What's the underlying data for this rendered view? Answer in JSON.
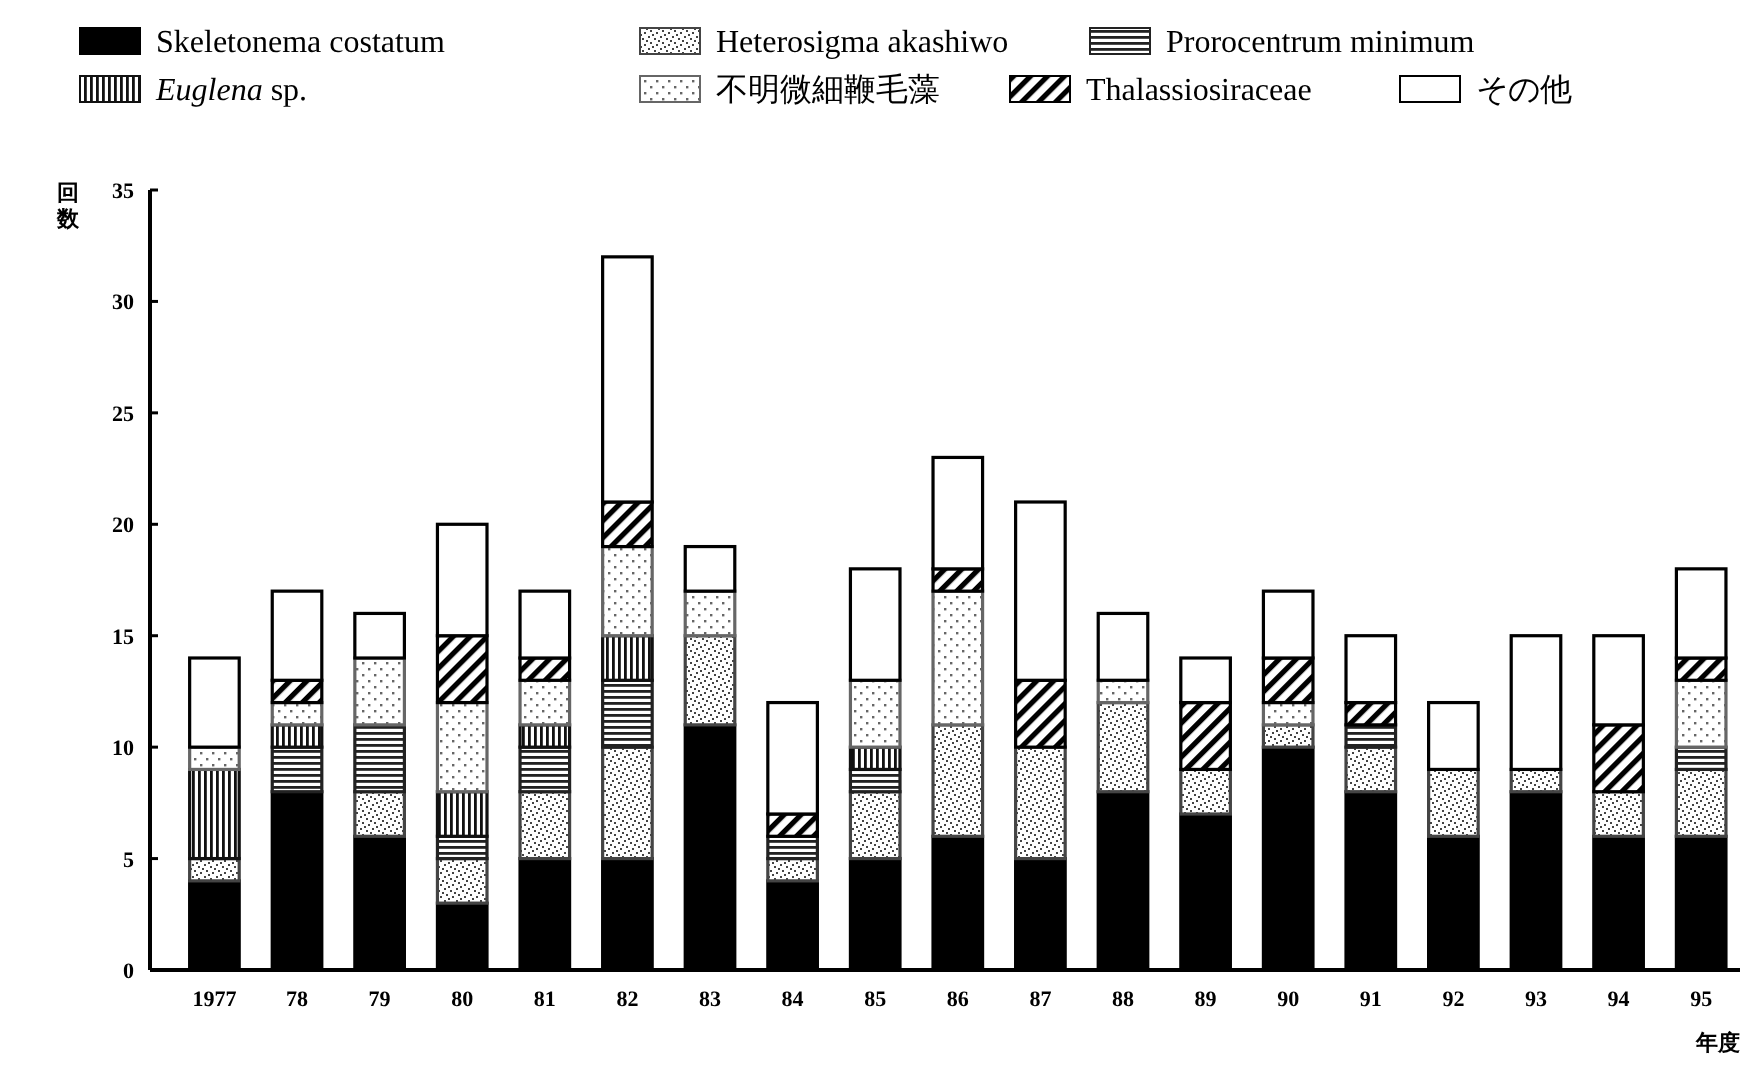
{
  "chart_data": {
    "type": "bar",
    "stacked": true,
    "xlabel": "年度",
    "ylabel": "回数",
    "categories": [
      "1977",
      "78",
      "79",
      "80",
      "81",
      "82",
      "83",
      "84",
      "85",
      "86",
      "87",
      "88",
      "89",
      "90",
      "91",
      "92",
      "93",
      "94",
      "95"
    ],
    "ylim": [
      0,
      35
    ],
    "yticks": [
      0,
      5,
      10,
      15,
      20,
      25,
      30,
      35
    ],
    "grid": false,
    "legend": "top",
    "series": [
      {
        "name": "Skeletonema costatum",
        "color": "#000000",
        "values": [
          4,
          8,
          6,
          3,
          5,
          5,
          11,
          4,
          5,
          6,
          5,
          8,
          7,
          10,
          8,
          6,
          8,
          6,
          6
        ]
      },
      {
        "name": "Heterosigma akashiwo",
        "color": "#444444",
        "values": [
          1,
          0,
          2,
          2,
          3,
          5,
          4,
          1,
          3,
          5,
          5,
          4,
          2,
          1,
          2,
          3,
          1,
          2,
          3
        ]
      },
      {
        "name": "Prorocentrum minimum",
        "color": "#222222",
        "values": [
          0,
          2,
          3,
          1,
          2,
          3,
          0,
          1,
          1,
          0,
          0,
          0,
          0,
          0,
          1,
          0,
          0,
          0,
          1
        ]
      },
      {
        "name": "*Euglena* sp.",
        "color": "#111111",
        "values": [
          4,
          1,
          0,
          2,
          1,
          2,
          0,
          0,
          1,
          0,
          0,
          0,
          0,
          0,
          0,
          0,
          0,
          0,
          0
        ]
      },
      {
        "name": "不明微細鞭毛藻",
        "color": "#666666",
        "values": [
          1,
          1,
          3,
          4,
          2,
          4,
          2,
          0,
          3,
          6,
          0,
          1,
          0,
          1,
          0,
          0,
          0,
          0,
          3
        ]
      },
      {
        "name": "Thalassiosiraceae",
        "color": "#000000",
        "values": [
          0,
          1,
          0,
          3,
          1,
          2,
          0,
          1,
          0,
          1,
          3,
          0,
          3,
          2,
          1,
          0,
          0,
          3,
          1
        ]
      },
      {
        "name": "その他",
        "color": "#ffffff",
        "values": [
          4,
          4,
          2,
          5,
          3,
          11,
          2,
          5,
          5,
          5,
          8,
          3,
          2,
          3,
          3,
          3,
          6,
          4,
          4
        ]
      }
    ]
  }
}
